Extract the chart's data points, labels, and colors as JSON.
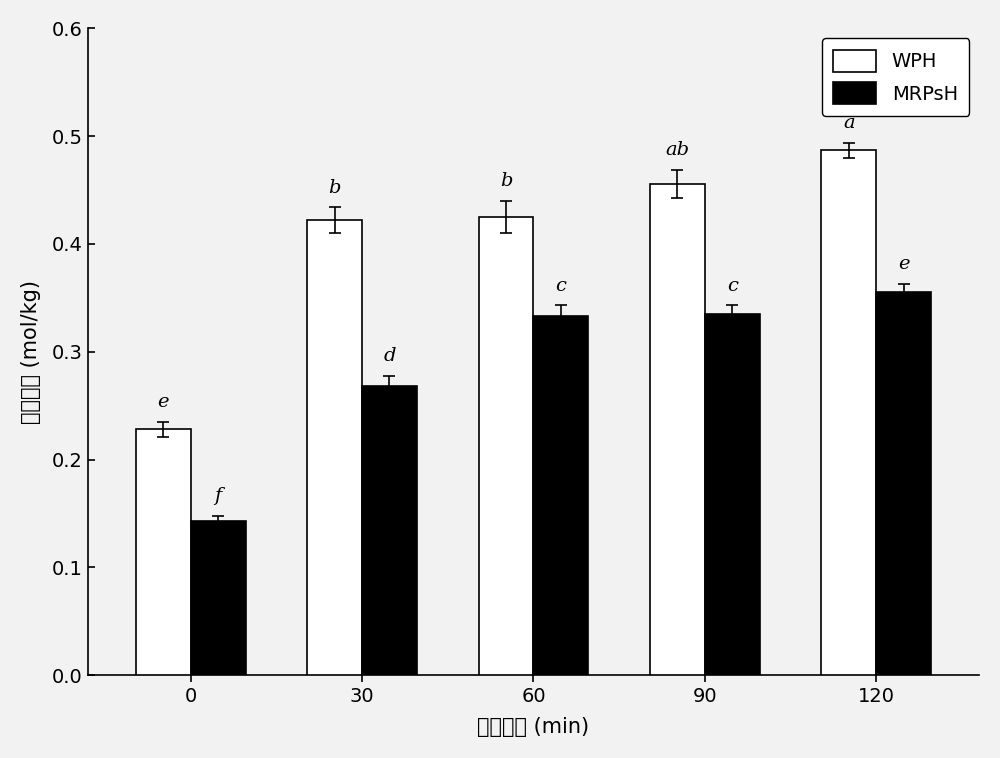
{
  "categories": [
    "0",
    "30",
    "60",
    "90",
    "120"
  ],
  "wph_values": [
    0.228,
    0.422,
    0.425,
    0.456,
    0.487
  ],
  "mrpsh_values": [
    0.143,
    0.268,
    0.333,
    0.335,
    0.355
  ],
  "wph_errors": [
    0.007,
    0.012,
    0.015,
    0.013,
    0.007
  ],
  "mrpsh_errors": [
    0.005,
    0.01,
    0.01,
    0.008,
    0.008
  ],
  "wph_labels": [
    "e",
    "b",
    "b",
    "ab",
    "a"
  ],
  "mrpsh_labels": [
    "f",
    "d",
    "c",
    "c",
    "e"
  ],
  "xlabel": "水解时间 (min)",
  "ylabel": "游离氨基 (mol/kg)",
  "ylim": [
    0.0,
    0.6
  ],
  "yticks": [
    0.0,
    0.1,
    0.2,
    0.3,
    0.4,
    0.5,
    0.6
  ],
  "legend_labels": [
    "WPH",
    "MRPsH"
  ],
  "wph_color": "#ffffff",
  "mrpsh_color": "#000000",
  "bar_edge_color": "#000000",
  "bar_width": 0.32,
  "label_fontsize": 15,
  "tick_fontsize": 14,
  "annotation_fontsize": 14,
  "legend_fontsize": 14,
  "figure_facecolor": "#f2f2f2",
  "axes_facecolor": "#f2f2f2"
}
